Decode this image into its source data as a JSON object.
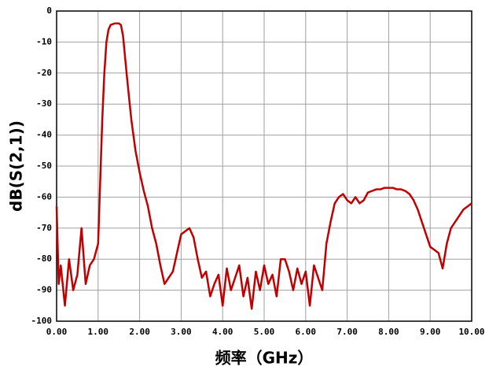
{
  "chart_data": {
    "type": "line",
    "x_label": "频率（GHz）",
    "y_label": "dB(S(2,1))",
    "x": [
      0,
      0.05,
      0.1,
      0.2,
      0.3,
      0.4,
      0.5,
      0.6,
      0.7,
      0.8,
      0.9,
      1.0,
      1.05,
      1.1,
      1.15,
      1.2,
      1.25,
      1.3,
      1.4,
      1.5,
      1.55,
      1.6,
      1.7,
      1.8,
      1.9,
      2.0,
      2.1,
      2.2,
      2.3,
      2.4,
      2.5,
      2.6,
      2.7,
      2.8,
      2.9,
      3.0,
      3.1,
      3.2,
      3.3,
      3.4,
      3.5,
      3.6,
      3.7,
      3.8,
      3.9,
      4.0,
      4.1,
      4.2,
      4.3,
      4.4,
      4.5,
      4.6,
      4.7,
      4.8,
      4.9,
      5.0,
      5.1,
      5.2,
      5.3,
      5.4,
      5.5,
      5.6,
      5.7,
      5.8,
      5.9,
      6.0,
      6.1,
      6.2,
      6.3,
      6.4,
      6.5,
      6.6,
      6.7,
      6.8,
      6.9,
      7.0,
      7.1,
      7.2,
      7.3,
      7.4,
      7.5,
      7.6,
      7.7,
      7.8,
      7.9,
      8.0,
      8.1,
      8.2,
      8.3,
      8.4,
      8.5,
      8.6,
      8.7,
      8.8,
      8.9,
      9.0,
      9.1,
      9.2,
      9.3,
      9.4,
      9.5,
      9.6,
      9.7,
      9.8,
      9.9,
      10.0
    ],
    "series": [
      {
        "name": "dB(S(2,1))",
        "color": "#c00000",
        "values": [
          -63,
          -88,
          -82,
          -95,
          -80,
          -90,
          -85,
          -70,
          -88,
          -82,
          -80,
          -75,
          -55,
          -35,
          -20,
          -10,
          -6,
          -4.5,
          -4,
          -4,
          -4.5,
          -8,
          -22,
          -35,
          -45,
          -52,
          -58,
          -63,
          -70,
          -75,
          -82,
          -88,
          -86,
          -84,
          -78,
          -72,
          -71,
          -70,
          -73,
          -80,
          -86,
          -84,
          -92,
          -88,
          -85,
          -95,
          -83,
          -90,
          -86,
          -82,
          -92,
          -86,
          -96,
          -84,
          -90,
          -82,
          -88,
          -85,
          -92,
          -80,
          -80,
          -84,
          -90,
          -83,
          -88,
          -84,
          -95,
          -82,
          -86,
          -90,
          -75,
          -68,
          -62,
          -60,
          -59,
          -61,
          -62,
          -60,
          -62,
          -61,
          -58.5,
          -58,
          -57.5,
          -57.5,
          -57,
          -57,
          -57,
          -57.5,
          -57.5,
          -58,
          -59,
          -61,
          -64,
          -68,
          -72,
          -76,
          -77,
          -78,
          -83,
          -75,
          -70,
          -68,
          -66,
          -64,
          -63,
          -62
        ]
      }
    ],
    "xlim": [
      0,
      10
    ],
    "xticks": [
      {
        "value": 0,
        "label": "0.00"
      },
      {
        "value": 1,
        "label": "1.00"
      },
      {
        "value": 2,
        "label": "2.00"
      },
      {
        "value": 3,
        "label": "3.00"
      },
      {
        "value": 4,
        "label": "4.00"
      },
      {
        "value": 5,
        "label": "5.00"
      },
      {
        "value": 6,
        "label": "6.00"
      },
      {
        "value": 7,
        "label": "7.00"
      },
      {
        "value": 8,
        "label": "8.00"
      },
      {
        "value": 9,
        "label": "9.00"
      },
      {
        "value": 10,
        "label": "10.00"
      }
    ],
    "ylim": [
      -100,
      0
    ],
    "yticks": [
      -100,
      -90,
      -80,
      -70,
      -60,
      -50,
      -40,
      -30,
      -20,
      -10,
      0
    ],
    "grid": true
  }
}
